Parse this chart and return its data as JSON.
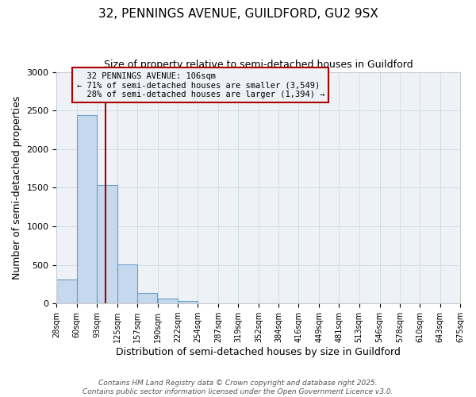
{
  "title_line1": "32, PENNINGS AVENUE, GUILDFORD, GU2 9SX",
  "title_line2": "Size of property relative to semi-detached houses in Guildford",
  "xlabel": "Distribution of semi-detached houses by size in Guildford",
  "ylabel": "Number of semi-detached properties",
  "property_size": 106,
  "property_label": "32 PENNINGS AVENUE: 106sqm",
  "pct_smaller": 71,
  "count_smaller": 3549,
  "pct_larger": 28,
  "count_larger": 1394,
  "bins": [
    28,
    60,
    93,
    125,
    157,
    190,
    222,
    254,
    287,
    319,
    352,
    384,
    416,
    449,
    481,
    513,
    546,
    578,
    610,
    643,
    675
  ],
  "bin_labels": [
    "28sqm",
    "60sqm",
    "93sqm",
    "125sqm",
    "157sqm",
    "190sqm",
    "222sqm",
    "254sqm",
    "287sqm",
    "319sqm",
    "352sqm",
    "384sqm",
    "416sqm",
    "449sqm",
    "481sqm",
    "513sqm",
    "546sqm",
    "578sqm",
    "610sqm",
    "643sqm",
    "675sqm"
  ],
  "counts": [
    310,
    2440,
    1530,
    510,
    140,
    65,
    35,
    0,
    0,
    0,
    0,
    0,
    0,
    0,
    0,
    0,
    0,
    0,
    0,
    0
  ],
  "bar_color": "#c5d8ee",
  "bar_edge_color": "#6a9fc8",
  "grid_color": "#d0dde8",
  "vline_color": "#aa0000",
  "vline_x": 106,
  "annotation_box_color": "#aa0000",
  "ylim": [
    0,
    3000
  ],
  "yticks": [
    0,
    500,
    1000,
    1500,
    2000,
    2500,
    3000
  ],
  "footer_line1": "Contains HM Land Registry data © Crown copyright and database right 2025.",
  "footer_line2": "Contains public sector information licensed under the Open Government Licence v3.0.",
  "bg_color": "#ffffff",
  "plot_bg_color": "#eef2f7"
}
